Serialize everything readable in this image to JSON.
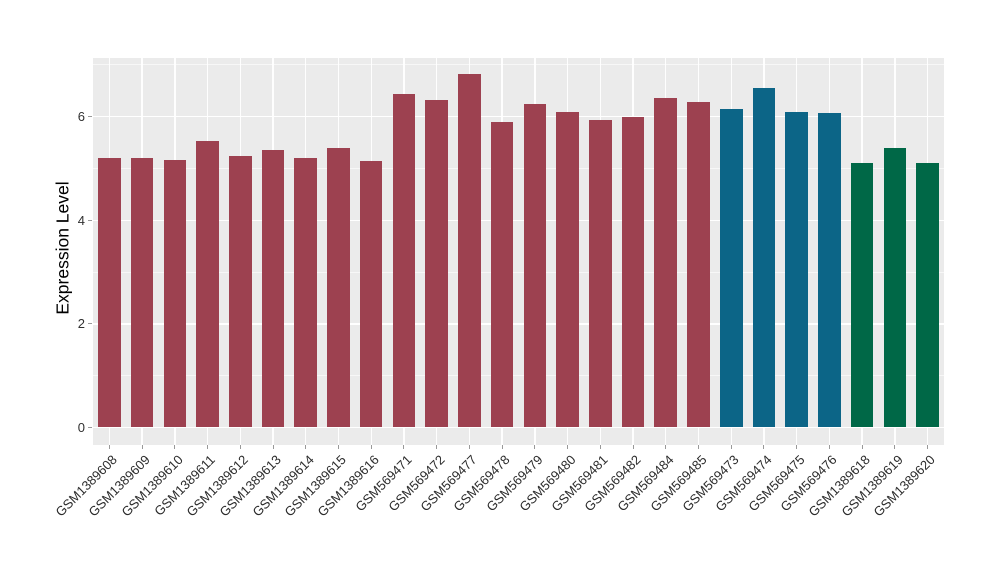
{
  "figure": {
    "background": "#FFFFFF"
  },
  "chart_data": {
    "type": "bar",
    "title": "",
    "xlabel": "",
    "ylabel": "Expression Level",
    "legend": "none",
    "grid": "on",
    "panel_bg": "#EBEBEB",
    "grid_color": "#FFFFFF",
    "categories": [
      "GSM1389608",
      "GSM1389609",
      "GSM1389610",
      "GSM1389611",
      "GSM1389612",
      "GSM1389613",
      "GSM1389614",
      "GSM1389615",
      "GSM1389616",
      "GSM569471",
      "GSM569472",
      "GSM569477",
      "GSM569478",
      "GSM569479",
      "GSM569480",
      "GSM569481",
      "GSM569482",
      "GSM569484",
      "GSM569485",
      "GSM569473",
      "GSM569474",
      "GSM569475",
      "GSM569476",
      "GSM1389618",
      "GSM1389619",
      "GSM1389620"
    ],
    "values": [
      5.21,
      5.21,
      5.16,
      5.53,
      5.25,
      5.36,
      5.21,
      5.4,
      5.15,
      6.43,
      6.33,
      6.83,
      5.89,
      6.24,
      6.1,
      5.94,
      6.0,
      6.36,
      6.28,
      6.15,
      6.55,
      6.1,
      6.07,
      5.11,
      5.39,
      5.1
    ],
    "groups": [
      "a",
      "a",
      "a",
      "a",
      "a",
      "a",
      "a",
      "a",
      "a",
      "a",
      "a",
      "a",
      "a",
      "a",
      "a",
      "a",
      "a",
      "a",
      "a",
      "b",
      "b",
      "b",
      "b",
      "c",
      "c",
      "c"
    ],
    "group_colors": {
      "a": "#9D4150",
      "b": "#0C6587",
      "c": "#006847"
    },
    "yticks": [
      0,
      2,
      4,
      6
    ],
    "yticks_minor": [
      1,
      3,
      5,
      7
    ],
    "ylim": [
      -0.341,
      7.134
    ],
    "x_label_rotation": -45,
    "bar_width_frac": 0.69
  }
}
